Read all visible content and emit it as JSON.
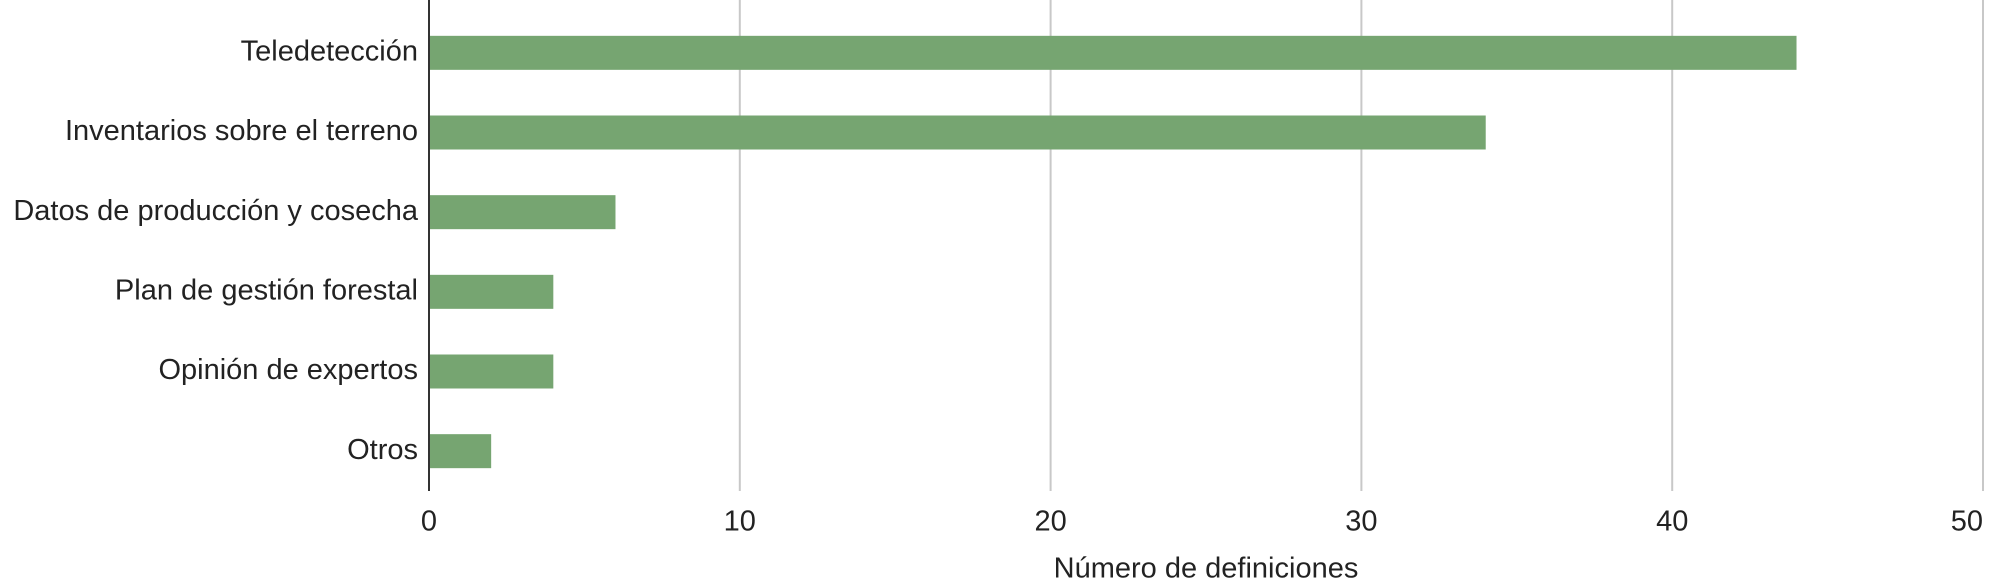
{
  "chart_data": {
    "type": "bar",
    "orientation": "horizontal",
    "categories": [
      "Teledetección",
      "Inventarios sobre el terreno",
      "Datos de producción y cosecha",
      "Plan de gestión forestal",
      "Opinión de expertos",
      "Otros"
    ],
    "values": [
      44,
      34,
      6,
      4,
      4,
      2
    ],
    "color": "#76a571",
    "xlabel": "Número de definiciones",
    "xlim": [
      0,
      50
    ],
    "xticks": [
      0,
      10,
      20,
      30,
      40,
      50
    ],
    "grid": true
  }
}
